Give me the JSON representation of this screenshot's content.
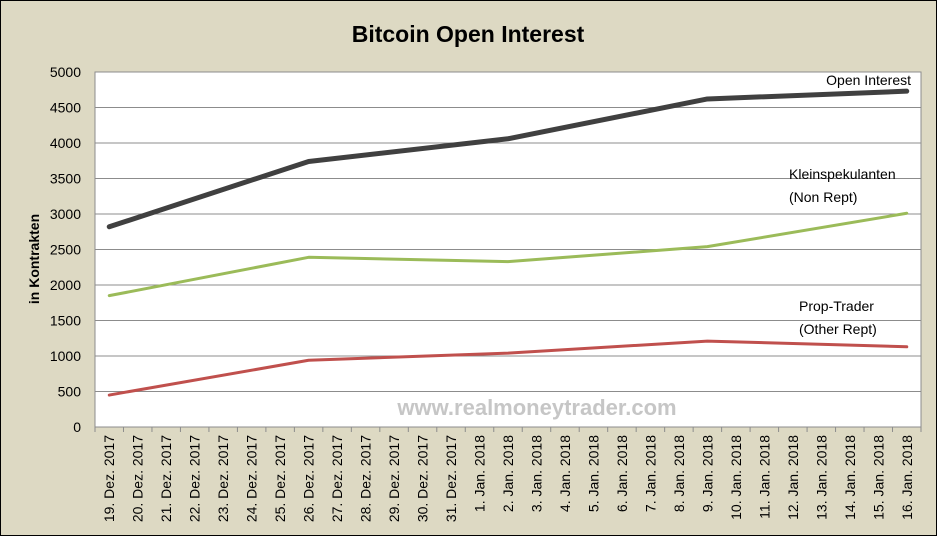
{
  "chart_data": {
    "type": "line",
    "title": "Bitcoin Open Interest",
    "ylabel": "in Kontrakten",
    "xlabel": "",
    "ylim": [
      0,
      5000
    ],
    "yticks": [
      0,
      500,
      1000,
      1500,
      2000,
      2500,
      3000,
      3500,
      4000,
      4500,
      5000
    ],
    "grid": true,
    "categories": [
      "19. Dez. 2017",
      "20. Dez. 2017",
      "21. Dez. 2017",
      "22. Dez. 2017",
      "23. Dez. 2017",
      "24. Dez. 2017",
      "25. Dez. 2017",
      "26. Dez. 2017",
      "27. Dez. 2017",
      "28. Dez. 2017",
      "29. Dez. 2017",
      "30. Dez. 2017",
      "31. Dez. 2017",
      "1. Jan. 2018",
      "2. Jan. 2018",
      "3. Jan. 2018",
      "4. Jan. 2018",
      "5. Jan. 2018",
      "6. Jan. 2018",
      "7. Jan. 2018",
      "8. Jan. 2018",
      "9. Jan. 2018",
      "10. Jan. 2018",
      "11. Jan. 2018",
      "12. Jan. 2018",
      "13. Jan. 2018",
      "14. Jan. 2018",
      "15. Jan. 2018",
      "16. Jan. 2018"
    ],
    "series": [
      {
        "name": "Open Interest",
        "color": "#404040",
        "points": [
          {
            "x": "19. Dez. 2017",
            "y": 2820
          },
          {
            "x": "26. Dez. 2017",
            "y": 3740
          },
          {
            "x": "2. Jan. 2018",
            "y": 4060
          },
          {
            "x": "9. Jan. 2018",
            "y": 4620
          },
          {
            "x": "16. Jan. 2018",
            "y": 4730
          }
        ]
      },
      {
        "name": "Kleinspekulanten (Non Rept)",
        "label_lines": [
          "Kleinspekulanten",
          "(Non Rept)"
        ],
        "color": "#9bbb59",
        "points": [
          {
            "x": "19. Dez. 2017",
            "y": 1850
          },
          {
            "x": "26. Dez. 2017",
            "y": 2390
          },
          {
            "x": "2. Jan. 2018",
            "y": 2330
          },
          {
            "x": "9. Jan. 2018",
            "y": 2540
          },
          {
            "x": "16. Jan. 2018",
            "y": 3010
          }
        ]
      },
      {
        "name": "Prop-Trader (Other Rept)",
        "label_lines": [
          "Prop-Trader",
          "(Other Rept)"
        ],
        "color": "#c0504d",
        "points": [
          {
            "x": "19. Dez. 2017",
            "y": 450
          },
          {
            "x": "26. Dez. 2017",
            "y": 940
          },
          {
            "x": "2. Jan. 2018",
            "y": 1040
          },
          {
            "x": "9. Jan. 2018",
            "y": 1210
          },
          {
            "x": "16. Jan. 2018",
            "y": 1130
          }
        ]
      }
    ],
    "annotations": [
      "www.realmoneytrader.com"
    ]
  }
}
